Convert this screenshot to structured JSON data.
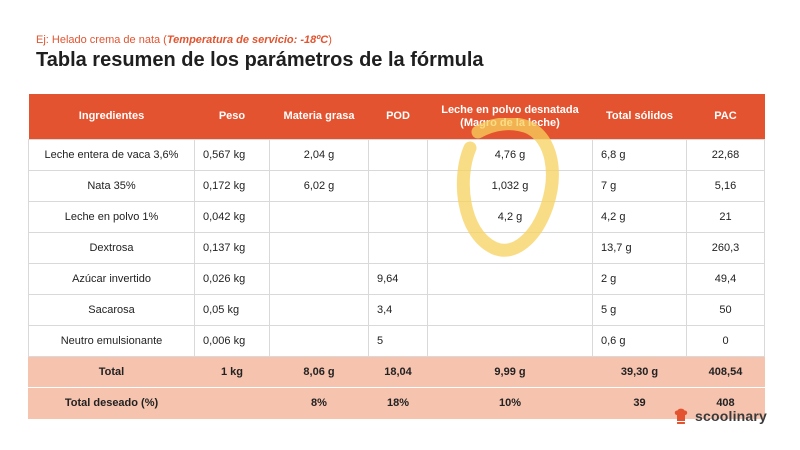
{
  "subtitle": {
    "prefix": "Ej: Helado crema de nata (",
    "emphasis": "Temperatura de servicio: -18ºC",
    "suffix": ")"
  },
  "title": "Tabla resumen de los parámetros de la fórmula",
  "table": {
    "headers": [
      "Ingredientes",
      "Peso",
      "Materia grasa",
      "POD",
      "Leche en polvo desnatada (Magro de  la leche)",
      "Total sólidos",
      "PAC"
    ],
    "rows": [
      [
        "Leche entera de vaca 3,6%",
        "0,567 kg",
        "2,04 g",
        "",
        "4,76 g",
        "6,8 g",
        "22,68"
      ],
      [
        "Nata 35%",
        "0,172 kg",
        "6,02 g",
        "",
        "1,032 g",
        "7 g",
        "5,16"
      ],
      [
        "Leche en polvo 1%",
        "0,042 kg",
        "",
        "",
        "4,2 g",
        "4,2 g",
        "21"
      ],
      [
        "Dextrosa",
        "0,137 kg",
        "",
        "",
        "",
        "13,7 g",
        "260,3"
      ],
      [
        "Azúcar invertido",
        "0,026 kg",
        "",
        "9,64",
        "",
        "2 g",
        "49,4"
      ],
      [
        "Sacarosa",
        "0,05 kg",
        "",
        "3,4",
        "",
        "5 g",
        "50"
      ],
      [
        "Neutro emulsionante",
        "0,006 kg",
        "",
        "5",
        "",
        "0,6 g",
        "0"
      ]
    ],
    "total": [
      "Total",
      "1 kg",
      "8,06 g",
      "18,04",
      "9,99 g",
      "39,30 g",
      "408,54"
    ],
    "desired": [
      "Total deseado (%)",
      "",
      "8%",
      "18%",
      "10%",
      "39",
      "408"
    ]
  },
  "brand": {
    "name": "scoolinary",
    "accent": "#e4532f",
    "highlight": "#f7d25e"
  },
  "icons": {
    "logo": "chef-hat-icon"
  }
}
